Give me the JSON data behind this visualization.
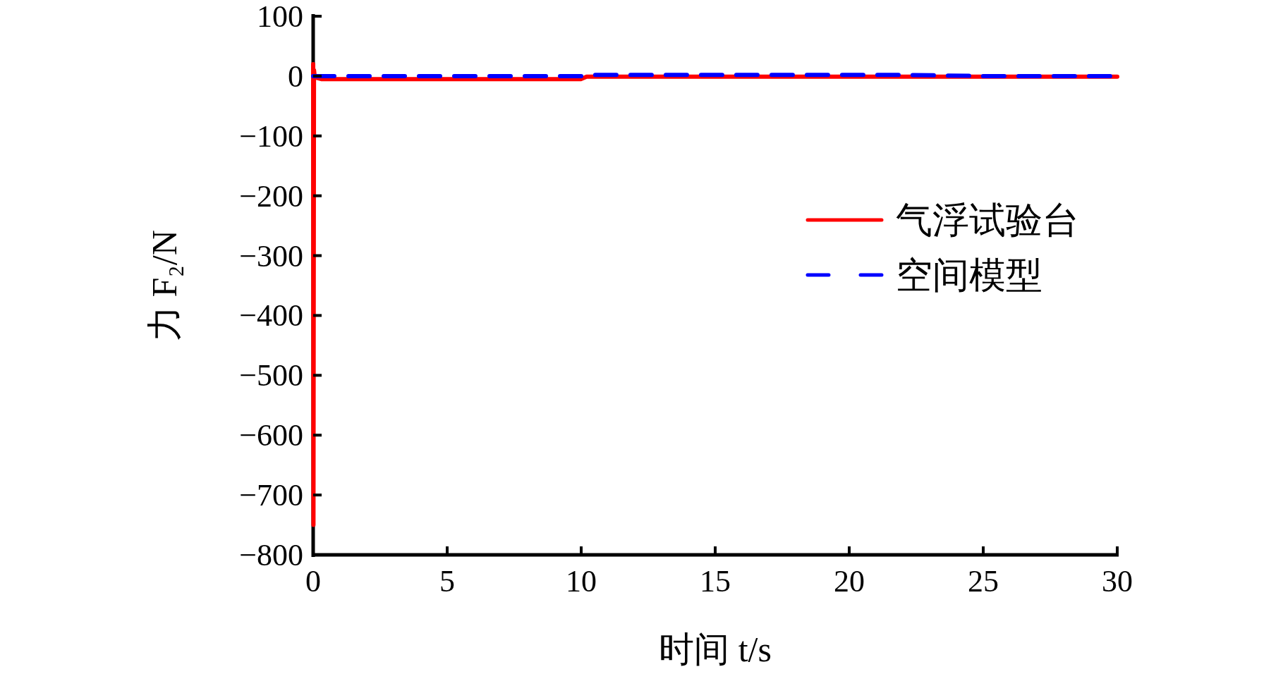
{
  "chart_data": {
    "type": "line",
    "xlabel": "时间 t/s",
    "ylabel": "力 F₂/N",
    "xlim": [
      0,
      30
    ],
    "ylim": [
      -800,
      100
    ],
    "xticks": [
      0,
      5,
      10,
      15,
      20,
      25,
      30
    ],
    "yticks": [
      -800,
      -700,
      -600,
      -500,
      -400,
      -300,
      -200,
      -100,
      0,
      100
    ],
    "grid": false,
    "legend": "right",
    "series": [
      {
        "name": "气浮试验台",
        "color": "#ff0000",
        "line_style": "solid",
        "x": [
          0,
          0.01,
          0.03,
          0.06,
          0.3,
          10,
          10.2,
          30
        ],
        "values": [
          20,
          -750,
          10,
          -2,
          -5,
          -5,
          -1,
          -1
        ]
      },
      {
        "name": "空间模型",
        "color": "#0000ff",
        "line_style": "dashed",
        "x": [
          0,
          10,
          10.5,
          22,
          25,
          30
        ],
        "values": [
          0,
          0,
          2,
          2,
          0,
          0
        ]
      }
    ]
  }
}
